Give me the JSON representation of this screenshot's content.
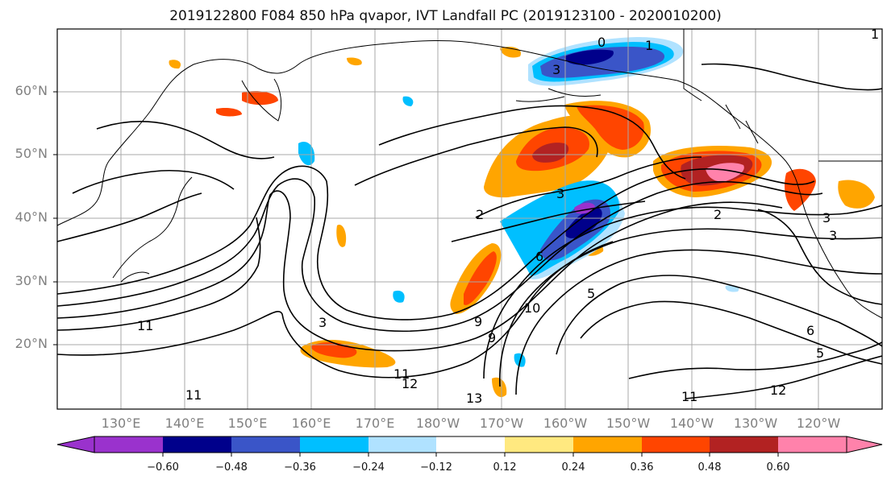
{
  "title": "2019122800 F084 850 hPa qvapor, IVT Landfall PC (2019123100 - 2020010200)",
  "lat_labels": [
    "60°N",
    "50°N",
    "40°N",
    "30°N",
    "20°N"
  ],
  "lon_labels": [
    "130°E",
    "140°E",
    "150°E",
    "160°E",
    "170°E",
    "180°W",
    "170°W",
    "160°W",
    "150°W",
    "140°W",
    "130°W",
    "120°W"
  ],
  "colorbar": {
    "tick_labels": [
      "−0.60",
      "−0.48",
      "−0.36",
      "−0.24",
      "−0.12",
      "0.12",
      "0.24",
      "0.36",
      "0.48",
      "0.60"
    ],
    "colors": [
      "#9a32cd",
      "#00008b",
      "#3a55c8",
      "#00bfff",
      "#b0e2ff",
      "#ffffff",
      "#ffe980",
      "#ffa500",
      "#ff4500",
      "#b22222",
      "#ff82ab"
    ]
  },
  "contour_labels": [
    "0",
    "1",
    "1",
    "3",
    "3",
    "2",
    "3",
    "3",
    "2",
    "5",
    "6",
    "9",
    "10",
    "11",
    "12",
    "13",
    "11",
    "11",
    "11",
    "12",
    "6",
    "5",
    "9",
    "3"
  ]
}
